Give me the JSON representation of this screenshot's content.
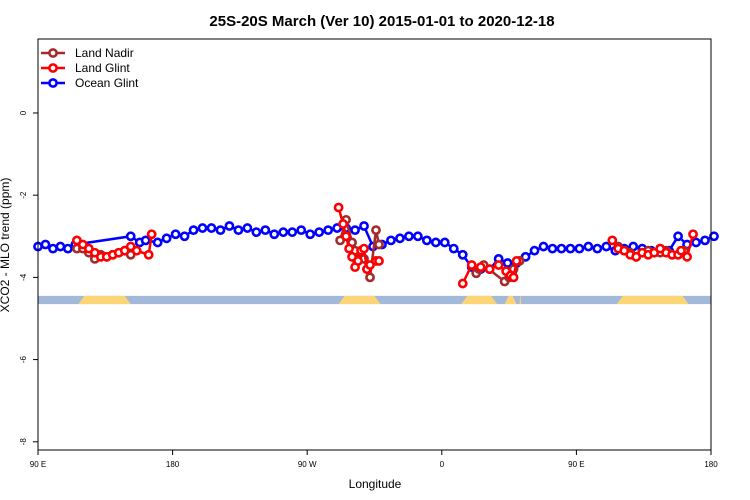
{
  "chart_data": {
    "type": "line",
    "title": "25S-20S March (Ver 10)   2015-01-01 to 2020-12-18",
    "xlabel": "Longitude",
    "ylabel": "XCO2 - MLO trend (ppm)",
    "ylim": [
      -8.2,
      1.8
    ],
    "x_ticks": [
      {
        "pos": 0,
        "label": "90 E"
      },
      {
        "pos": 90,
        "label": "180"
      },
      {
        "pos": 180,
        "label": "90 W"
      },
      {
        "pos": 270,
        "label": "0"
      },
      {
        "pos": 360,
        "label": "90 E"
      },
      {
        "pos": 450,
        "label": "180"
      }
    ],
    "y_ticks": [
      0,
      -2,
      -4,
      -6,
      -8
    ],
    "grid": false,
    "legend_position": "top-left",
    "land_band": {
      "y_range": [
        -4.65,
        -4.45
      ],
      "ocean_color": "#a3b9da",
      "land_color": "#fbd576",
      "land_segments": [
        [
          27,
          62
        ],
        [
          201,
          229
        ],
        [
          283,
          307
        ],
        [
          312,
          320
        ],
        [
          322,
          323
        ],
        [
          387,
          435
        ]
      ]
    },
    "series": [
      {
        "name": "Ocean Glint",
        "color": "#0000ff",
        "x": [
          0,
          5,
          10,
          15,
          20,
          25,
          62,
          68,
          72,
          80,
          86,
          92,
          98,
          104,
          110,
          116,
          122,
          128,
          134,
          140,
          146,
          152,
          158,
          164,
          170,
          176,
          182,
          188,
          194,
          200,
          206,
          212,
          218,
          224,
          230,
          236,
          242,
          248,
          254,
          260,
          266,
          272,
          278,
          284,
          290,
          296,
          302,
          308,
          314,
          320,
          326,
          332,
          338,
          344,
          350,
          356,
          362,
          368,
          374,
          380,
          386,
          392,
          398,
          404,
          410,
          416,
          422,
          428,
          434,
          440,
          446,
          452
        ],
        "y": [
          -3.25,
          -3.2,
          -3.3,
          -3.25,
          -3.3,
          -3.2,
          -3.0,
          -3.15,
          -3.1,
          -3.15,
          -3.05,
          -2.95,
          -3.0,
          -2.85,
          -2.8,
          -2.8,
          -2.85,
          -2.75,
          -2.85,
          -2.8,
          -2.9,
          -2.85,
          -2.95,
          -2.9,
          -2.9,
          -2.85,
          -2.95,
          -2.9,
          -2.85,
          -2.8,
          -2.8,
          -2.85,
          -2.75,
          -3.25,
          -3.2,
          -3.1,
          -3.05,
          -3.0,
          -3.0,
          -3.1,
          -3.15,
          -3.15,
          -3.3,
          -3.45,
          -3.75,
          -3.8,
          -3.8,
          -3.55,
          -3.65,
          -3.65,
          -3.5,
          -3.35,
          -3.25,
          -3.3,
          -3.3,
          -3.3,
          -3.3,
          -3.25,
          -3.3,
          -3.25,
          -3.35,
          -3.3,
          -3.25,
          -3.3,
          -3.35,
          -3.3,
          -3.35,
          -3.0,
          -3.2,
          -3.15,
          -3.1,
          -3.0
        ]
      },
      {
        "name": "Land Nadir",
        "color": "#a52a2a",
        "x": [
          26,
          30,
          34,
          38,
          42,
          46,
          50,
          54,
          58,
          62,
          202,
          206,
          210,
          212,
          214,
          216,
          218,
          220,
          222,
          226,
          228,
          293,
          295,
          298,
          312,
          315,
          317,
          318,
          322,
          388,
          392,
          396,
          400,
          404,
          408,
          412,
          416,
          420,
          424,
          428,
          432
        ],
        "y": [
          -3.3,
          -3.3,
          -3.4,
          -3.55,
          -3.45,
          -3.5,
          -3.45,
          -3.4,
          -3.35,
          -3.45,
          -3.1,
          -2.6,
          -3.15,
          -3.35,
          -3.6,
          -3.5,
          -3.55,
          -3.8,
          -4.0,
          -2.85,
          -3.2,
          -3.9,
          -3.8,
          -3.7,
          -4.1,
          -4.0,
          -3.9,
          -3.8,
          -3.6,
          -3.25,
          -3.35,
          -3.4,
          -3.5,
          -3.4,
          -3.35,
          -3.4,
          -3.4,
          -3.35,
          -3.45,
          -3.45,
          -3.35
        ]
      },
      {
        "name": "Land Glint",
        "color": "#ff0000",
        "x": [
          26,
          30,
          34,
          38,
          42,
          46,
          50,
          54,
          58,
          62,
          66,
          74,
          76,
          201,
          204,
          206,
          208,
          210,
          212,
          214,
          216,
          218,
          220,
          222,
          226,
          228,
          284,
          290,
          296,
          302,
          308,
          313,
          316,
          318,
          320,
          384,
          388,
          392,
          396,
          400,
          404,
          408,
          412,
          416,
          420,
          424,
          428,
          430,
          434,
          438
        ],
        "y": [
          -3.1,
          -3.2,
          -3.3,
          -3.4,
          -3.5,
          -3.5,
          -3.45,
          -3.4,
          -3.35,
          -3.25,
          -3.35,
          -3.45,
          -2.95,
          -2.3,
          -2.7,
          -3.0,
          -3.3,
          -3.5,
          -3.75,
          -3.6,
          -3.35,
          -3.3,
          -3.8,
          -3.7,
          -3.6,
          -3.6,
          -4.15,
          -3.7,
          -3.75,
          -3.8,
          -3.7,
          -3.85,
          -3.95,
          -4.0,
          -3.6,
          -3.1,
          -3.3,
          -3.35,
          -3.45,
          -3.5,
          -3.4,
          -3.45,
          -3.4,
          -3.3,
          -3.4,
          -3.45,
          -3.45,
          -3.35,
          -3.5,
          -2.95
        ]
      }
    ]
  }
}
